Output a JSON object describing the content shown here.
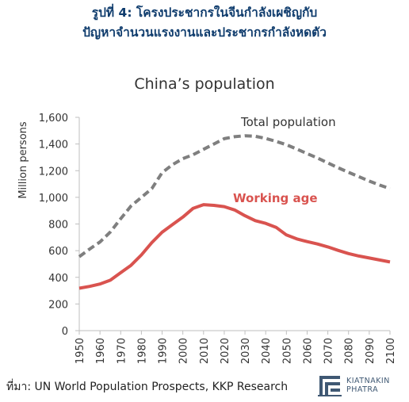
{
  "header": {
    "line1": "รูปที่ 4: โครงประชากรในจีนกำลังเผชิญกับ",
    "line2": "ปัญหาจำนวนแรงงานและประชากรกำลังหดตัว"
  },
  "source": "ที่มา: UN World Population Prospects, KKP Research",
  "logo": {
    "line1": "KIATNAKIN",
    "line2": "PHATRA"
  },
  "colors": {
    "title": "#0f3c6d",
    "total": "#7f7f7f",
    "working": "#d9534f",
    "axis": "#333333"
  },
  "chart_data": {
    "type": "line",
    "title": "China’s population",
    "ylabel": "Million persons",
    "xlabel": "",
    "ylim": [
      0,
      1600
    ],
    "yticks": [
      0,
      200,
      400,
      600,
      800,
      1000,
      1200,
      1400,
      1600
    ],
    "ytick_labels": [
      "0",
      "200",
      "400",
      "600",
      "800",
      "1,000",
      "1,200",
      "1,400",
      "1,600"
    ],
    "xlim": [
      1950,
      2100
    ],
    "xticks": [
      1950,
      1960,
      1970,
      1980,
      1990,
      2000,
      2010,
      2020,
      2030,
      2040,
      2050,
      2060,
      2070,
      2080,
      2090,
      2100
    ],
    "grid": false,
    "series": [
      {
        "name": "Total population",
        "style": "dashed",
        "color": "#7f7f7f",
        "x": [
          1950,
          1955,
          1960,
          1965,
          1970,
          1975,
          1980,
          1985,
          1990,
          1995,
          2000,
          2005,
          2010,
          2015,
          2020,
          2025,
          2030,
          2035,
          2040,
          2045,
          2050,
          2055,
          2060,
          2065,
          2070,
          2075,
          2080,
          2085,
          2090,
          2095,
          2100
        ],
        "values": [
          555,
          612,
          665,
          740,
          840,
          935,
          1000,
          1065,
          1185,
          1245,
          1290,
          1320,
          1360,
          1400,
          1440,
          1455,
          1462,
          1458,
          1442,
          1420,
          1395,
          1362,
          1328,
          1295,
          1258,
          1222,
          1188,
          1155,
          1122,
          1092,
          1065
        ]
      },
      {
        "name": "Working age",
        "style": "solid",
        "color": "#d9534f",
        "x": [
          1950,
          1955,
          1960,
          1965,
          1970,
          1975,
          1980,
          1985,
          1990,
          1995,
          2000,
          2005,
          2010,
          2015,
          2020,
          2025,
          2030,
          2035,
          2040,
          2045,
          2050,
          2055,
          2060,
          2065,
          2070,
          2075,
          2080,
          2085,
          2090,
          2095,
          2100
        ],
        "values": [
          318,
          332,
          350,
          378,
          435,
          490,
          568,
          660,
          738,
          795,
          852,
          918,
          945,
          940,
          930,
          905,
          862,
          825,
          805,
          775,
          718,
          688,
          668,
          650,
          628,
          602,
          578,
          560,
          545,
          530,
          515
        ]
      }
    ]
  }
}
